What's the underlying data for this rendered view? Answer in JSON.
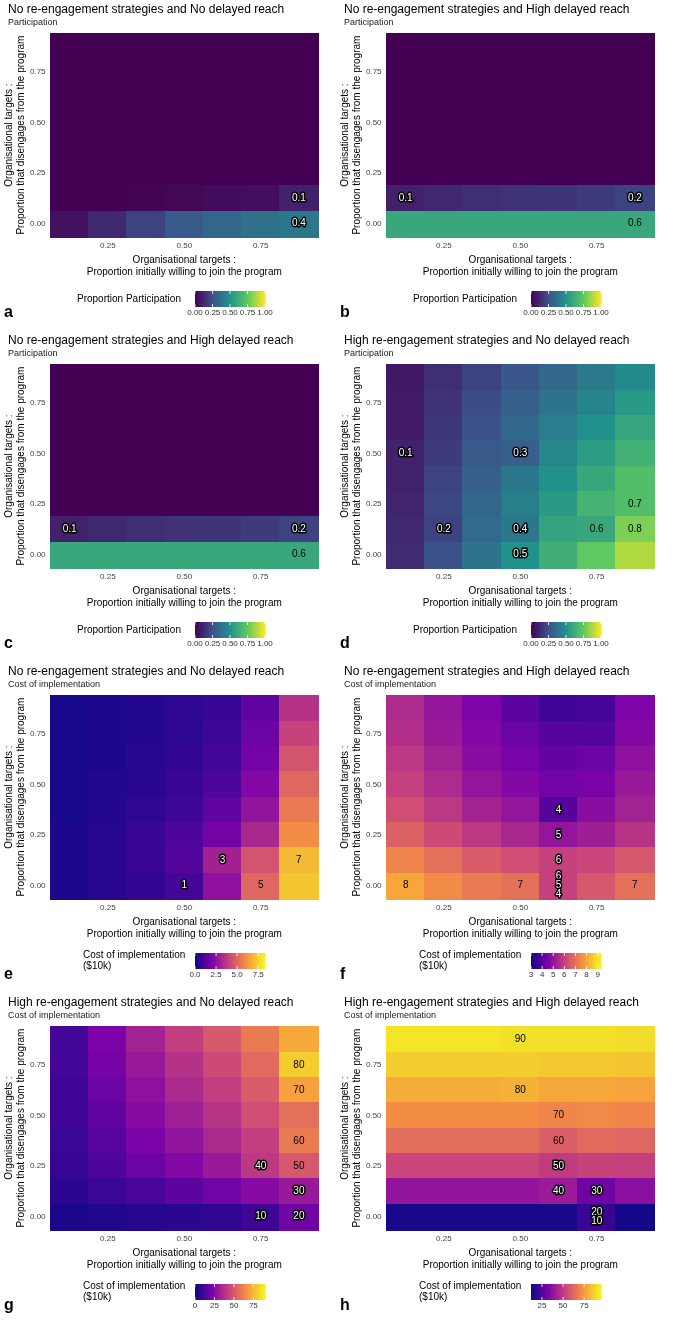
{
  "chart_data": [
    {
      "type": "heatmap",
      "title": "No re-engagement strategies and No delayed reach",
      "subtitle": "Participation",
      "xlabel": "Organisational targets :\nProportion initially willing to join the program",
      "ylabel": "Organisational targets :\nProportion that disengages from the program",
      "clabel": "Proportion Participation",
      "categories": [
        null,
        "0.25",
        null,
        "0.50",
        null,
        "0.75",
        null
      ],
      "y_categories": [
        null,
        "0.75",
        null,
        "0.50",
        null,
        "0.25",
        null,
        "0.00"
      ],
      "clim": [
        0,
        1
      ],
      "cticks": [
        {
          "value": 0,
          "label": "0.00"
        },
        0.25,
        {
          "value": 0.5,
          "label": "0.50"
        },
        0.75,
        {
          "value": 1,
          "label": "1.00"
        }
      ],
      "colors": [
        "#440154",
        "#3b528b",
        "#21918c",
        "#5ec962",
        "#fde725"
      ],
      "cells": [
        [
          0,
          0,
          0,
          0,
          0,
          0,
          0
        ],
        [
          0,
          0,
          0,
          0,
          0,
          0,
          0
        ],
        [
          0,
          0,
          0,
          0,
          0,
          0,
          0
        ],
        [
          0,
          0,
          0,
          0,
          0,
          0,
          0
        ],
        [
          0,
          0,
          0,
          0,
          0,
          0,
          0
        ],
        [
          0,
          0,
          0,
          0,
          0,
          0,
          0
        ],
        [
          0,
          0,
          0.01,
          0.02,
          0.03,
          0.04,
          0.1
        ],
        [
          0.05,
          0.12,
          0.2,
          0.28,
          0.33,
          0.37,
          0.4
        ]
      ],
      "cell_labels": [
        [
          null,
          null,
          null,
          null,
          null,
          null,
          null
        ],
        [
          null,
          null,
          null,
          null,
          null,
          null,
          null
        ],
        [
          null,
          null,
          null,
          null,
          null,
          null,
          null
        ],
        [
          null,
          null,
          null,
          null,
          null,
          null,
          null
        ],
        [
          null,
          null,
          null,
          null,
          null,
          null,
          null
        ],
        [
          null,
          null,
          null,
          null,
          null,
          null,
          null
        ],
        [
          null,
          null,
          null,
          null,
          null,
          null,
          "0.1"
        ],
        [
          null,
          null,
          null,
          null,
          null,
          null,
          "0.4"
        ]
      ],
      "annotations": [
        "a"
      ]
    },
    {
      "type": "heatmap",
      "title": "No re-engagement strategies and High delayed reach",
      "subtitle": "Participation",
      "xlabel": "Organisational targets :\nProportion initially willing to join the program",
      "ylabel": "Organisational targets :\nProportion that disengages from the program",
      "clabel": "Proportion Participation",
      "categories": [
        null,
        "0.25",
        null,
        "0.50",
        null,
        "0.75",
        null
      ],
      "y_categories": [
        null,
        "0.75",
        null,
        "0.50",
        null,
        "0.25",
        null,
        "0.00"
      ],
      "clim": [
        0,
        1
      ],
      "cticks": [
        {
          "value": 0,
          "label": "0.00"
        },
        0.25,
        {
          "value": 0.5,
          "label": "0.50"
        },
        0.75,
        {
          "value": 1,
          "label": "1.00"
        }
      ],
      "colors": [
        "#440154",
        "#3b528b",
        "#21918c",
        "#5ec962",
        "#fde725"
      ],
      "cells": [
        [
          0,
          0,
          0,
          0,
          0,
          0,
          0
        ],
        [
          0,
          0,
          0,
          0,
          0,
          0,
          0
        ],
        [
          0,
          0,
          0,
          0,
          0,
          0,
          0
        ],
        [
          0,
          0,
          0,
          0,
          0,
          0,
          0
        ],
        [
          0,
          0,
          0,
          0,
          0,
          0,
          0
        ],
        [
          0,
          0,
          0,
          0,
          0,
          0,
          0
        ],
        [
          0.1,
          0.12,
          0.14,
          0.15,
          0.16,
          0.18,
          0.2
        ],
        [
          0.6,
          0.6,
          0.6,
          0.6,
          0.6,
          0.6,
          0.6
        ]
      ],
      "cell_labels": [
        [
          null,
          null,
          null,
          null,
          null,
          null,
          null
        ],
        [
          null,
          null,
          null,
          null,
          null,
          null,
          null
        ],
        [
          null,
          null,
          null,
          null,
          null,
          null,
          null
        ],
        [
          null,
          null,
          null,
          null,
          null,
          null,
          null
        ],
        [
          null,
          null,
          null,
          null,
          null,
          null,
          null
        ],
        [
          null,
          null,
          null,
          null,
          null,
          null,
          null
        ],
        [
          "0.1",
          null,
          null,
          null,
          null,
          null,
          "0.2"
        ],
        [
          null,
          null,
          null,
          null,
          null,
          null,
          "0.6"
        ]
      ],
      "annotations": [
        "b"
      ]
    },
    {
      "type": "heatmap",
      "title": "No re-engagement strategies and High delayed reach",
      "subtitle": "Participation",
      "xlabel": "Organisational targets :\nProportion initially willing to join the program",
      "ylabel": "Organisational targets :\nProportion that disengages from the program",
      "clabel": "Proportion Participation",
      "categories": [
        null,
        "0.25",
        null,
        "0.50",
        null,
        "0.75",
        null
      ],
      "y_categories": [
        null,
        "0.75",
        null,
        "0.50",
        null,
        "0.25",
        null,
        "0.00"
      ],
      "clim": [
        0,
        1
      ],
      "cticks": [
        {
          "value": 0,
          "label": "0.00"
        },
        0.25,
        {
          "value": 0.5,
          "label": "0.50"
        },
        0.75,
        {
          "value": 1,
          "label": "1.00"
        }
      ],
      "colors": [
        "#440154",
        "#3b528b",
        "#21918c",
        "#5ec962",
        "#fde725"
      ],
      "cells": [
        [
          0,
          0,
          0,
          0,
          0,
          0,
          0
        ],
        [
          0,
          0,
          0,
          0,
          0,
          0,
          0
        ],
        [
          0,
          0,
          0,
          0,
          0,
          0,
          0
        ],
        [
          0,
          0,
          0,
          0,
          0,
          0,
          0
        ],
        [
          0,
          0,
          0,
          0,
          0,
          0,
          0
        ],
        [
          0,
          0,
          0,
          0,
          0,
          0,
          0
        ],
        [
          0.1,
          0.12,
          0.14,
          0.15,
          0.16,
          0.18,
          0.2
        ],
        [
          0.6,
          0.6,
          0.6,
          0.6,
          0.6,
          0.6,
          0.6
        ]
      ],
      "cell_labels": [
        [
          null,
          null,
          null,
          null,
          null,
          null,
          null
        ],
        [
          null,
          null,
          null,
          null,
          null,
          null,
          null
        ],
        [
          null,
          null,
          null,
          null,
          null,
          null,
          null
        ],
        [
          null,
          null,
          null,
          null,
          null,
          null,
          null
        ],
        [
          null,
          null,
          null,
          null,
          null,
          null,
          null
        ],
        [
          null,
          null,
          null,
          null,
          null,
          null,
          null
        ],
        [
          "0.1",
          null,
          null,
          null,
          null,
          null,
          "0.2"
        ],
        [
          null,
          null,
          null,
          null,
          null,
          null,
          "0.6"
        ]
      ],
      "annotations": [
        "c"
      ]
    },
    {
      "type": "heatmap",
      "title": "High re-engagement strategies and No delayed reach",
      "subtitle": "Participation",
      "xlabel": "Organisational targets :\nProportion initially willing to join the program",
      "ylabel": "Organisational targets :\nProportion that disengages from the program",
      "clabel": "Proportion Participation",
      "categories": [
        null,
        "0.25",
        null,
        "0.50",
        null,
        "0.75",
        null
      ],
      "y_categories": [
        null,
        "0.75",
        null,
        "0.50",
        null,
        "0.25",
        null,
        "0.00"
      ],
      "clim": [
        0,
        1
      ],
      "cticks": [
        {
          "value": 0,
          "label": "0.00"
        },
        0.25,
        {
          "value": 0.5,
          "label": "0.50"
        },
        0.75,
        {
          "value": 1,
          "label": "1.00"
        }
      ],
      "colors": [
        "#440154",
        "#3b528b",
        "#21918c",
        "#5ec962",
        "#fde725"
      ],
      "cells": [
        [
          0.07,
          0.14,
          0.2,
          0.27,
          0.34,
          0.41,
          0.47
        ],
        [
          0.08,
          0.15,
          0.23,
          0.3,
          0.38,
          0.45,
          0.53
        ],
        [
          0.08,
          0.17,
          0.25,
          0.34,
          0.42,
          0.5,
          0.59
        ],
        [
          0.1,
          0.18,
          0.28,
          0.3,
          0.46,
          0.55,
          0.64
        ],
        [
          0.1,
          0.2,
          0.3,
          0.4,
          0.5,
          0.6,
          0.7
        ],
        [
          0.11,
          0.22,
          0.33,
          0.43,
          0.54,
          0.65,
          0.7
        ],
        [
          0.12,
          0.2,
          0.35,
          0.4,
          0.58,
          0.6,
          0.8
        ],
        [
          0.13,
          0.25,
          0.38,
          0.5,
          0.63,
          0.75,
          0.88
        ]
      ],
      "cell_labels": [
        [
          null,
          null,
          null,
          null,
          null,
          null,
          null
        ],
        [
          null,
          null,
          null,
          null,
          null,
          null,
          null
        ],
        [
          null,
          null,
          null,
          null,
          null,
          null,
          null
        ],
        [
          "0.1",
          null,
          null,
          "0.3",
          null,
          null,
          null
        ],
        [
          null,
          null,
          null,
          null,
          null,
          null,
          null
        ],
        [
          null,
          null,
          null,
          null,
          null,
          null,
          "0.7"
        ],
        [
          null,
          "0.2",
          null,
          "0.4",
          null,
          "0.6",
          "0.8"
        ],
        [
          null,
          null,
          null,
          "0.5",
          null,
          null,
          null
        ]
      ],
      "annotations": [
        "d"
      ]
    },
    {
      "type": "heatmap",
      "title": "No re-engagement strategies and No delayed reach",
      "subtitle": "Cost of implementation",
      "xlabel": "Organisational targets :\nProportion initially willing to join the program",
      "ylabel": "Organisational targets :\nProportion that disengages from the program",
      "clabel": "Cost of implementation\n($10k)",
      "categories": [
        null,
        "0.25",
        null,
        "0.50",
        null,
        "0.75",
        null
      ],
      "y_categories": [
        null,
        "0.75",
        null,
        "0.50",
        null,
        "0.25",
        null,
        "0.00"
      ],
      "clim": [
        0,
        8.3
      ],
      "cticks": [
        {
          "value": 0,
          "label": "0.0"
        },
        2.5,
        {
          "value": 5,
          "label": "5.0"
        },
        7.5
      ],
      "colors": [
        "#0d0887",
        "#7e03a8",
        "#cc4778",
        "#f89540",
        "#f0f921"
      ],
      "cells": [
        [
          0.2,
          0.3,
          0.4,
          0.6,
          0.8,
          1.5,
          3.5
        ],
        [
          0.2,
          0.3,
          0.4,
          0.6,
          0.9,
          1.7,
          4
        ],
        [
          0.2,
          0.3,
          0.5,
          0.7,
          1,
          1.9,
          4.5
        ],
        [
          0.2,
          0.4,
          0.5,
          0.8,
          1.2,
          2.2,
          5
        ],
        [
          0.2,
          0.4,
          0.6,
          0.9,
          1.5,
          2.6,
          5.5
        ],
        [
          0.3,
          0.5,
          0.8,
          1.2,
          1.9,
          3.2,
          6
        ],
        [
          0.3,
          0.5,
          0.8,
          1.3,
          3,
          4.5,
          7
        ],
        [
          0.3,
          0.5,
          0.7,
          1,
          2.5,
          5,
          7.2
        ]
      ],
      "cell_labels": [
        [
          null,
          null,
          null,
          null,
          null,
          null,
          null
        ],
        [
          null,
          null,
          null,
          null,
          null,
          null,
          null
        ],
        [
          null,
          null,
          null,
          null,
          null,
          null,
          null
        ],
        [
          null,
          null,
          null,
          null,
          null,
          null,
          null
        ],
        [
          null,
          null,
          null,
          null,
          null,
          null,
          null
        ],
        [
          null,
          null,
          null,
          null,
          null,
          null,
          null
        ],
        [
          null,
          null,
          null,
          null,
          "3",
          null,
          "7"
        ],
        [
          null,
          null,
          null,
          "1",
          null,
          "5",
          null
        ]
      ],
      "annotations": [
        "e"
      ]
    },
    {
      "type": "heatmap",
      "title": "No re-engagement strategies and High delayed reach",
      "subtitle": "Cost of implementation",
      "xlabel": "Organisational targets :\nProportion initially willing to join the program",
      "ylabel": "Organisational targets :\nProportion that disengages from the program",
      "clabel": "Cost of implementation\n($10k)",
      "categories": [
        null,
        "0.25",
        null,
        "0.50",
        null,
        "0.75",
        null
      ],
      "y_categories": [
        null,
        "0.75",
        null,
        "0.50",
        null,
        "0.25",
        null,
        "0.00"
      ],
      "clim": [
        3,
        9.3
      ],
      "cticks": [
        3,
        4,
        5,
        6,
        7,
        8,
        9
      ],
      "colors": [
        "#0d0887",
        "#7e03a8",
        "#cc4778",
        "#f89540",
        "#f0f921"
      ],
      "cells": [
        [
          5.5,
          5,
          4.6,
          4.1,
          3.7,
          3.8,
          4.6
        ],
        [
          5.6,
          5.1,
          4.7,
          4.3,
          4,
          4,
          4.7
        ],
        [
          5.8,
          5.3,
          4.8,
          4.5,
          4.2,
          4.3,
          4.9
        ],
        [
          6,
          5.5,
          5,
          4.7,
          4.4,
          4.5,
          5.1
        ],
        [
          6.3,
          5.8,
          5.3,
          5,
          4,
          4.8,
          5.3
        ],
        [
          6.7,
          6.2,
          5.8,
          5.4,
          5,
          5.2,
          5.7
        ],
        [
          7.4,
          7,
          6.6,
          6.3,
          6,
          6.1,
          6.5
        ],
        [
          8,
          7.5,
          7.2,
          7,
          6,
          6.5,
          7
        ]
      ],
      "cell_labels": [
        [
          null,
          null,
          null,
          null,
          null,
          null,
          null
        ],
        [
          null,
          null,
          null,
          null,
          null,
          null,
          null
        ],
        [
          null,
          null,
          null,
          null,
          null,
          null,
          null
        ],
        [
          null,
          null,
          null,
          null,
          null,
          null,
          null
        ],
        [
          null,
          null,
          null,
          null,
          "4",
          null,
          null
        ],
        [
          null,
          null,
          null,
          null,
          "5",
          null,
          null
        ],
        [
          null,
          null,
          null,
          null,
          "6",
          null,
          null
        ],
        [
          "8",
          null,
          null,
          "7",
          "6\n5\n4",
          null,
          "7"
        ]
      ],
      "annotations": [
        "f"
      ]
    },
    {
      "type": "heatmap",
      "title": "High re-engagement strategies and No delayed reach",
      "subtitle": "Cost of implementation",
      "xlabel": "Organisational targets :\nProportion initially willing to join the program",
      "ylabel": "Organisational targets :\nProportion that disengages from the program",
      "clabel": "Cost of implementation\n($10k)",
      "categories": [
        null,
        "0.25",
        null,
        "0.50",
        null,
        "0.75",
        null
      ],
      "y_categories": [
        null,
        "0.75",
        null,
        "0.50",
        null,
        "0.25",
        null,
        "0.00"
      ],
      "clim": [
        0,
        90
      ],
      "cticks": [
        0,
        25,
        50,
        75
      ],
      "colors": [
        "#0d0887",
        "#7e03a8",
        "#cc4778",
        "#f89540",
        "#f0f921"
      ],
      "cells": [
        [
          11,
          22,
          33,
          42,
          50,
          60,
          72
        ],
        [
          11,
          21,
          30,
          38,
          46,
          55,
          80
        ],
        [
          10,
          19,
          27,
          35,
          42,
          51,
          70
        ],
        [
          10,
          17,
          25,
          32,
          39,
          47,
          57
        ],
        [
          9,
          15,
          22,
          28,
          35,
          42,
          60
        ],
        [
          8,
          13,
          19,
          24,
          30,
          40,
          50
        ],
        [
          6,
          9,
          12,
          16,
          20,
          25,
          30
        ],
        [
          3,
          4,
          5,
          6,
          7,
          10,
          20
        ]
      ],
      "cell_labels": [
        [
          null,
          null,
          null,
          null,
          null,
          null,
          null
        ],
        [
          null,
          null,
          null,
          null,
          null,
          null,
          "80"
        ],
        [
          null,
          null,
          null,
          null,
          null,
          null,
          "70"
        ],
        [
          null,
          null,
          null,
          null,
          null,
          null,
          null
        ],
        [
          null,
          null,
          null,
          null,
          null,
          null,
          "60"
        ],
        [
          null,
          null,
          null,
          null,
          null,
          "40",
          "50"
        ],
        [
          null,
          null,
          null,
          null,
          null,
          null,
          "30"
        ],
        [
          null,
          null,
          null,
          null,
          null,
          "10",
          "20"
        ]
      ],
      "annotations": [
        "g"
      ]
    },
    {
      "type": "heatmap",
      "title": "High re-engagement strategies and High delayed reach",
      "subtitle": "Cost of implementation",
      "xlabel": "Organisational targets :\nProportion initially willing to join the program",
      "ylabel": "Organisational targets :\nProportion that disengages from the program",
      "clabel": "Cost of implementation\n($10k)",
      "categories": [
        null,
        "0.25",
        null,
        "0.50",
        null,
        "0.75",
        null
      ],
      "y_categories": [
        null,
        "0.75",
        null,
        "0.50",
        null,
        "0.25",
        null,
        "0.00"
      ],
      "clim": [
        12,
        95
      ],
      "cticks": [
        25,
        50,
        75
      ],
      "colors": [
        "#0d0887",
        "#7e03a8",
        "#cc4778",
        "#f89540",
        "#f0f921"
      ],
      "cells": [
        [
          91,
          91,
          91,
          90,
          90,
          90,
          89
        ],
        [
          86,
          86,
          86,
          86,
          85,
          85,
          84
        ],
        [
          79,
          79,
          79,
          80,
          78,
          78,
          77
        ],
        [
          72,
          72,
          72,
          72,
          70,
          71,
          70
        ],
        [
          64,
          64,
          64,
          64,
          60,
          63,
          62
        ],
        [
          53,
          53,
          53,
          53,
          50,
          52,
          51
        ],
        [
          38,
          38,
          38,
          38,
          40,
          30,
          36
        ],
        [
          14,
          14,
          14,
          14,
          14,
          20,
          13
        ]
      ],
      "cell_labels": [
        [
          null,
          null,
          null,
          "90",
          null,
          null,
          null
        ],
        [
          null,
          null,
          null,
          null,
          null,
          null,
          null
        ],
        [
          null,
          null,
          null,
          "80",
          null,
          null,
          null
        ],
        [
          null,
          null,
          null,
          null,
          "70",
          null,
          null
        ],
        [
          null,
          null,
          null,
          null,
          "60",
          null,
          null
        ],
        [
          null,
          null,
          null,
          null,
          "50",
          null,
          null
        ],
        [
          null,
          null,
          null,
          null,
          "40",
          "30",
          null
        ],
        [
          null,
          null,
          null,
          null,
          null,
          "20\n10",
          null
        ]
      ],
      "annotations": [
        "h"
      ]
    }
  ]
}
